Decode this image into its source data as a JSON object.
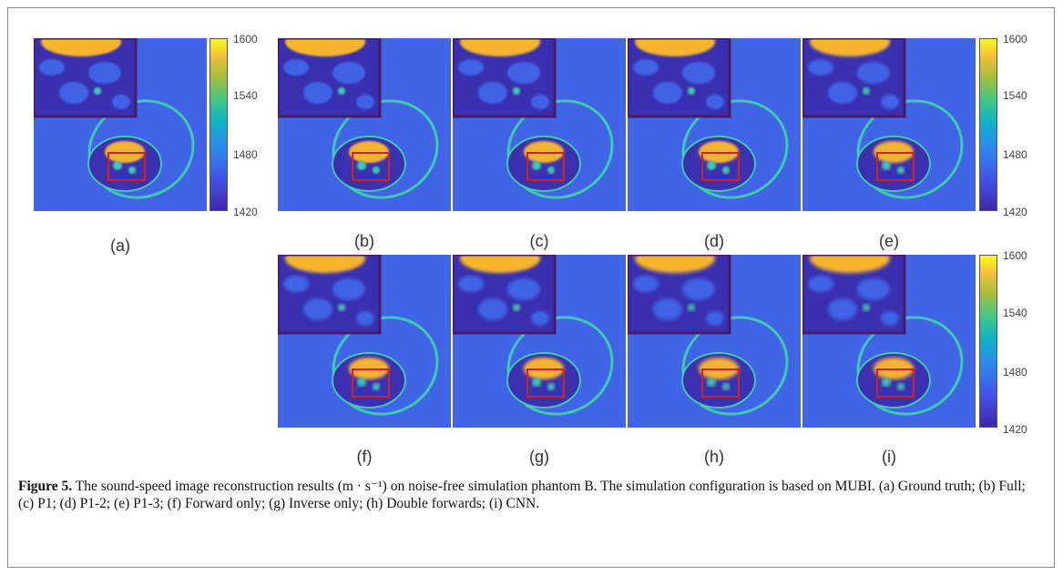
{
  "panels": [
    {
      "label": "(a)"
    },
    {
      "label": "(b)"
    },
    {
      "label": "(c)"
    },
    {
      "label": "(d)"
    },
    {
      "label": "(e)"
    },
    {
      "label": "(f)"
    },
    {
      "label": "(g)"
    },
    {
      "label": "(h)"
    },
    {
      "label": "(i)"
    }
  ],
  "colorbar": {
    "ticks": [
      "1600",
      "1540",
      "1480",
      "1420"
    ],
    "min": 1420,
    "max": 1600
  },
  "colors": {
    "background": "#4064e6",
    "inset_border": "#4a1a6a",
    "roi_box": "#d42020",
    "high": "#f6b52e",
    "mid": "#3fc9b0"
  },
  "caption": {
    "label": "Figure 5.",
    "text": "The sound-speed image reconstruction results (m · s⁻¹) on noise-free simulation phantom B. The simulation configuration is based on MUBI. (a) Ground truth; (b) Full; (c) P1; (d) P1-2; (e) P1-3; (f) Forward only; (g) Inverse only; (h) Double forwards; (i) CNN."
  }
}
